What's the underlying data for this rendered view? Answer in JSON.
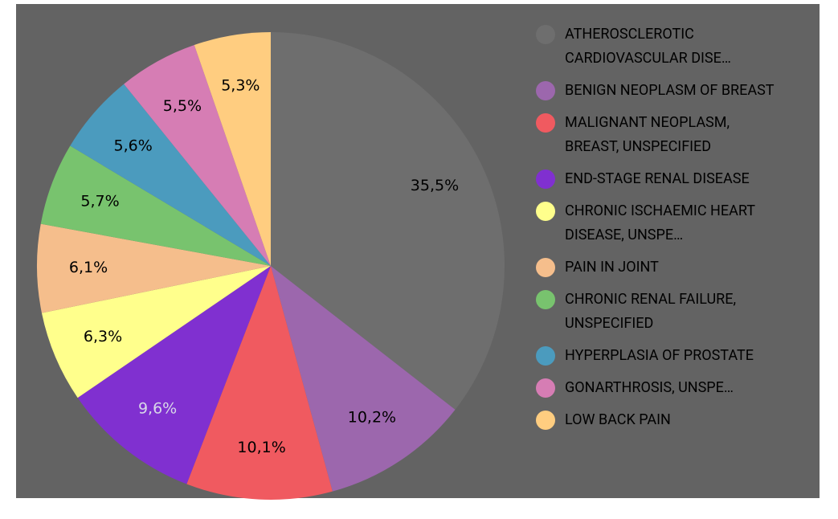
{
  "chart_data": {
    "type": "pie",
    "categories": [
      "ATHEROSCLEROTIC CARDIOVASCULAR DISE…",
      "BENIGN NEOPLASM OF BREAST",
      "MALIGNANT NEOPLASM, BREAST, UNSPECIFIED",
      "END-STAGE RENAL DISEASE",
      "CHRONIC ISCHAEMIC HEART DISEASE, UNSPE…",
      "PAIN IN JOINT",
      "CHRONIC RENAL FAILURE, UNSPECIFIED",
      "HYPERPLASIA OF PROSTATE",
      "GONARTHROSIS, UNSPE…",
      "LOW BACK PAIN"
    ],
    "values": [
      35.5,
      10.2,
      10.1,
      9.6,
      6.3,
      6.1,
      5.7,
      5.6,
      5.5,
      5.3
    ],
    "value_labels": [
      "35,5%",
      "10,2%",
      "10,1%",
      "9,6%",
      "6,3%",
      "6,1%",
      "5,7%",
      "5,6%",
      "5,5%",
      "5,3%"
    ],
    "colors": [
      "#6e6e6e",
      "#9c67ad",
      "#f05a60",
      "#8030d0",
      "#ffff8c",
      "#f5be8c",
      "#78c36e",
      "#4b9bbe",
      "#d67db4",
      "#ffcd80"
    ],
    "legend": "right"
  }
}
